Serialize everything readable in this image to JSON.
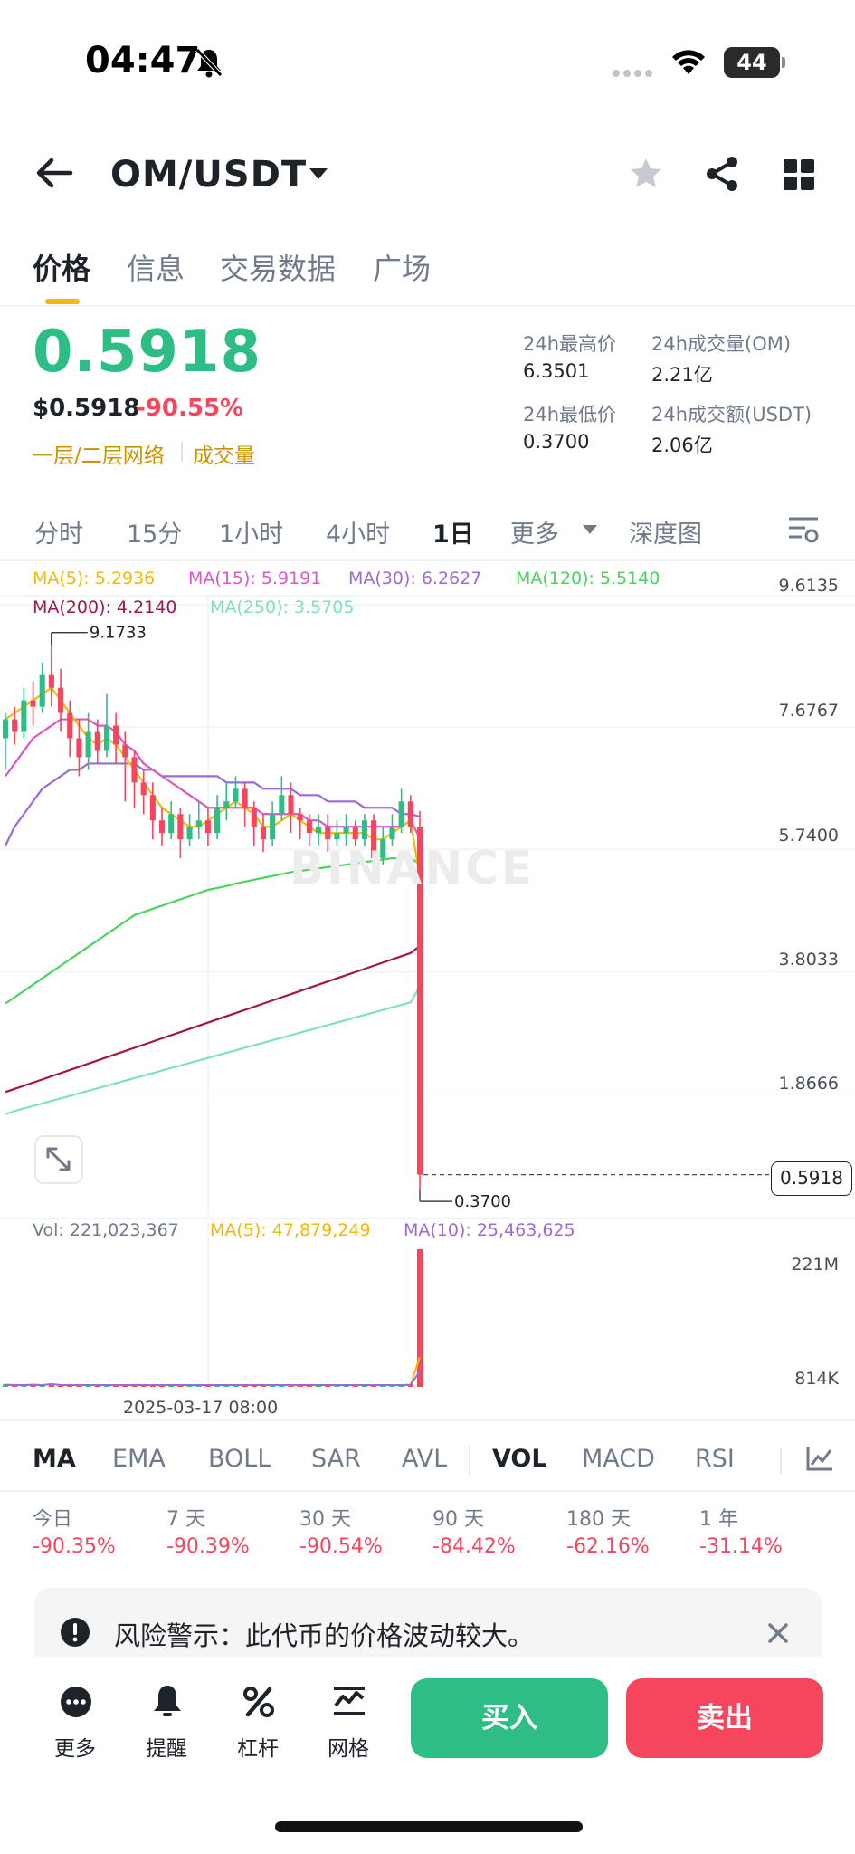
{
  "status_bar": {
    "time": "04:47",
    "battery": "44"
  },
  "header": {
    "pair": "OM/USDT"
  },
  "tabs": [
    {
      "label": "价格",
      "active": true
    },
    {
      "label": "信息",
      "active": false
    },
    {
      "label": "交易数据",
      "active": false
    },
    {
      "label": "广场",
      "active": false
    }
  ],
  "price": {
    "last": "0.5918",
    "usd": "$0.5918",
    "change": "-90.55%",
    "tag1": "一层/二层网络",
    "tag2": "成交量"
  },
  "stats": {
    "high_label": "24h最高价",
    "high": "6.3501",
    "vol_om_label": "24h成交量(OM)",
    "vol_om": "2.21亿",
    "low_label": "24h最低价",
    "low": "0.3700",
    "vol_usdt_label": "24h成交额(USDT)",
    "vol_usdt": "2.06亿"
  },
  "intervals": [
    "分时",
    "15分",
    "1小时",
    "4小时",
    "1日",
    "更多",
    "深度图"
  ],
  "active_interval": "1日",
  "ma_legend": {
    "ma5": "MA(5): 5.2936",
    "ma15": "MA(15): 5.9191",
    "ma30": "MA(30): 6.2627",
    "ma120": "MA(120): 5.5140",
    "ma200": "MA(200): 4.2140",
    "ma250": "MA(250): 3.5705"
  },
  "colors": {
    "up": "#2ebd85",
    "down": "#f6465d",
    "brand": "#f0b90b",
    "ma5": "#f0b90b",
    "ma15": "#dd55c8",
    "ma30": "#9b6bd4",
    "ma120": "#4bd35e",
    "ma200": "#a1164d",
    "ma250": "#7de0c6"
  },
  "chart_data": {
    "type": "candlestick",
    "y_axis_labels": [
      "9.6135",
      "7.6767",
      "5.7400",
      "3.8033",
      "1.8666"
    ],
    "ylim": [
      0.3,
      9.9
    ],
    "max_marker": "9.1733",
    "min_marker": "0.3700",
    "last_price": "0.5918",
    "watermark": "BINANCE",
    "candles": [
      [
        7.5,
        7.8,
        7.0,
        7.9
      ],
      [
        7.8,
        7.6,
        7.4,
        8.0
      ],
      [
        7.6,
        8.1,
        7.5,
        8.3
      ],
      [
        8.1,
        8.0,
        7.7,
        8.4
      ],
      [
        8.0,
        8.5,
        7.9,
        8.7
      ],
      [
        8.5,
        8.3,
        8.0,
        9.17
      ],
      [
        8.3,
        7.9,
        7.6,
        8.6
      ],
      [
        7.9,
        7.5,
        7.2,
        8.1
      ],
      [
        7.5,
        7.2,
        6.9,
        7.8
      ],
      [
        7.2,
        7.6,
        7.0,
        7.9
      ],
      [
        7.6,
        7.3,
        7.1,
        7.8
      ],
      [
        7.3,
        7.7,
        7.2,
        8.2
      ],
      [
        7.7,
        7.4,
        7.1,
        7.9
      ],
      [
        7.4,
        7.2,
        6.5,
        7.6
      ],
      [
        7.2,
        6.8,
        6.4,
        7.3
      ],
      [
        6.8,
        6.6,
        6.3,
        7.0
      ],
      [
        6.6,
        6.2,
        5.9,
        6.8
      ],
      [
        6.2,
        6.0,
        5.8,
        6.4
      ],
      [
        6.0,
        6.3,
        5.9,
        6.5
      ],
      [
        6.3,
        5.9,
        5.6,
        6.4
      ],
      [
        5.9,
        6.1,
        5.8,
        6.3
      ],
      [
        6.1,
        6.2,
        5.9,
        6.5
      ],
      [
        6.2,
        6.0,
        5.8,
        6.4
      ],
      [
        6.0,
        6.4,
        5.9,
        6.6
      ],
      [
        6.4,
        6.5,
        6.2,
        6.8
      ],
      [
        6.5,
        6.7,
        6.4,
        6.9
      ],
      [
        6.7,
        6.4,
        6.1,
        6.8
      ],
      [
        6.4,
        6.1,
        5.8,
        6.5
      ],
      [
        6.1,
        5.9,
        5.7,
        6.3
      ],
      [
        5.9,
        6.3,
        5.8,
        6.5
      ],
      [
        6.3,
        6.6,
        6.2,
        6.9
      ],
      [
        6.6,
        6.3,
        6.0,
        6.8
      ],
      [
        6.3,
        6.2,
        5.9,
        6.4
      ],
      [
        6.2,
        6.0,
        5.8,
        6.3
      ],
      [
        6.0,
        6.1,
        5.8,
        6.3
      ],
      [
        6.1,
        5.9,
        5.7,
        6.3
      ],
      [
        5.9,
        6.0,
        5.8,
        6.2
      ],
      [
        6.0,
        6.1,
        5.8,
        6.3
      ],
      [
        6.1,
        5.9,
        5.8,
        6.2
      ],
      [
        5.9,
        6.2,
        5.8,
        6.3
      ],
      [
        6.2,
        5.6,
        5.5,
        6.3
      ],
      [
        5.6,
        5.9,
        5.5,
        6.1
      ],
      [
        5.9,
        6.1,
        5.8,
        6.3
      ],
      [
        6.1,
        6.5,
        6.0,
        6.7
      ],
      [
        6.5,
        6.1,
        6.0,
        6.6
      ],
      [
        6.1,
        0.5918,
        0.37,
        6.35
      ]
    ],
    "ma_lines": {
      "ma5": [
        7.8,
        7.9,
        8.0,
        8.1,
        8.2,
        8.3,
        8.1,
        7.9,
        7.7,
        7.5,
        7.4,
        7.5,
        7.4,
        7.2,
        7.0,
        6.8,
        6.6,
        6.4,
        6.3,
        6.2,
        6.1,
        6.1,
        6.2,
        6.3,
        6.4,
        6.5,
        6.4,
        6.3,
        6.1,
        6.1,
        6.2,
        6.3,
        6.2,
        6.1,
        6.0,
        6.0,
        6.0,
        6.0,
        6.0,
        6.0,
        5.9,
        5.9,
        6.0,
        6.1,
        6.2,
        5.29
      ],
      "ma15": [
        6.9,
        7.1,
        7.3,
        7.5,
        7.6,
        7.7,
        7.8,
        7.8,
        7.8,
        7.8,
        7.7,
        7.7,
        7.6,
        7.4,
        7.3,
        7.1,
        7.0,
        6.9,
        6.8,
        6.7,
        6.6,
        6.5,
        6.4,
        6.4,
        6.4,
        6.4,
        6.4,
        6.4,
        6.3,
        6.3,
        6.3,
        6.3,
        6.3,
        6.2,
        6.2,
        6.1,
        6.1,
        6.1,
        6.1,
        6.1,
        6.1,
        6.1,
        6.1,
        6.1,
        6.2,
        5.92
      ],
      "ma30": [
        5.8,
        6.1,
        6.3,
        6.5,
        6.7,
        6.8,
        6.9,
        7.0,
        7.0,
        7.1,
        7.1,
        7.1,
        7.1,
        7.1,
        7.1,
        7.0,
        7.0,
        6.9,
        6.9,
        6.9,
        6.9,
        6.9,
        6.9,
        6.9,
        6.8,
        6.8,
        6.8,
        6.8,
        6.7,
        6.7,
        6.7,
        6.7,
        6.6,
        6.6,
        6.6,
        6.5,
        6.5,
        6.5,
        6.5,
        6.4,
        6.4,
        6.4,
        6.4,
        6.3,
        6.3,
        6.26
      ],
      "ma120": [
        3.3,
        3.4,
        3.5,
        3.6,
        3.7,
        3.8,
        3.9,
        4.0,
        4.1,
        4.2,
        4.3,
        4.4,
        4.5,
        4.6,
        4.7,
        4.75,
        4.8,
        4.85,
        4.9,
        4.95,
        5.0,
        5.05,
        5.1,
        5.13,
        5.16,
        5.2,
        5.23,
        5.26,
        5.29,
        5.32,
        5.35,
        5.38,
        5.4,
        5.42,
        5.44,
        5.46,
        5.48,
        5.5,
        5.52,
        5.54,
        5.56,
        5.58,
        5.6,
        5.6,
        5.6,
        5.51
      ],
      "ma200": [
        1.9,
        1.95,
        2.0,
        2.05,
        2.1,
        2.15,
        2.2,
        2.25,
        2.3,
        2.35,
        2.4,
        2.45,
        2.5,
        2.55,
        2.6,
        2.65,
        2.7,
        2.75,
        2.8,
        2.85,
        2.9,
        2.95,
        3.0,
        3.05,
        3.1,
        3.15,
        3.2,
        3.25,
        3.3,
        3.35,
        3.4,
        3.45,
        3.5,
        3.55,
        3.6,
        3.65,
        3.7,
        3.75,
        3.8,
        3.85,
        3.9,
        3.95,
        4.0,
        4.05,
        4.1,
        4.21
      ],
      "ma250": [
        1.55,
        1.6,
        1.64,
        1.68,
        1.72,
        1.76,
        1.8,
        1.84,
        1.88,
        1.92,
        1.96,
        2.0,
        2.04,
        2.08,
        2.12,
        2.16,
        2.2,
        2.24,
        2.28,
        2.32,
        2.36,
        2.4,
        2.44,
        2.48,
        2.52,
        2.56,
        2.6,
        2.64,
        2.68,
        2.72,
        2.76,
        2.8,
        2.84,
        2.88,
        2.92,
        2.96,
        3.0,
        3.04,
        3.08,
        3.12,
        3.16,
        3.2,
        3.24,
        3.28,
        3.32,
        3.57
      ]
    },
    "volume": {
      "label": "Vol: 221,023,367",
      "ma5_label": "MA(5): 47,879,249",
      "ma10_label": "MA(10): 25,463,625",
      "axis_labels": [
        "221M",
        "814K"
      ],
      "date_label": "2025-03-17 08:00",
      "values": [
        3,
        2,
        2,
        3,
        2,
        4,
        2,
        2,
        2,
        2,
        1,
        1,
        1,
        1,
        1,
        1,
        1,
        1,
        1,
        1,
        1,
        1,
        1,
        1,
        1,
        1,
        1,
        1,
        1,
        1,
        1,
        1,
        1,
        1,
        1,
        1,
        1,
        1,
        1,
        1,
        2,
        2,
        1,
        2,
        3,
        221
      ]
    }
  },
  "indicators": [
    "MA",
    "EMA",
    "BOLL",
    "SAR",
    "AVL",
    "VOL",
    "MACD",
    "RSI"
  ],
  "performance": [
    {
      "label": "今日",
      "value": "-90.35%"
    },
    {
      "label": "7 天",
      "value": "-90.39%"
    },
    {
      "label": "30 天",
      "value": "-90.54%"
    },
    {
      "label": "90 天",
      "value": "-84.42%"
    },
    {
      "label": "180 天",
      "value": "-62.16%"
    },
    {
      "label": "1 年",
      "value": "-31.14%"
    }
  ],
  "risk_warning": "风险警示：此代币的价格波动较大。",
  "bottom_bar": {
    "more": "更多",
    "alert": "提醒",
    "leverage": "杠杆",
    "grid": "网格",
    "buy": "买入",
    "sell": "卖出"
  }
}
